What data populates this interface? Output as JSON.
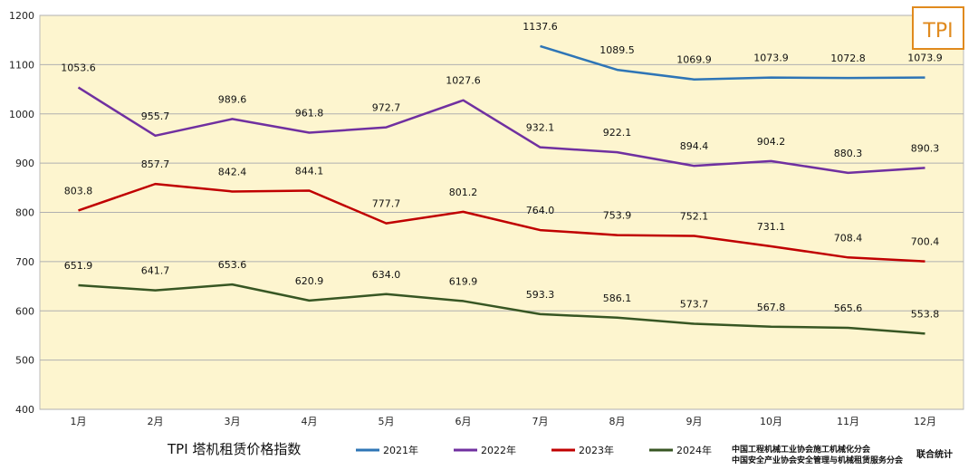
{
  "chart_data": {
    "type": "line",
    "title": "TPI  塔机租赁价格指数",
    "logo": "TPI",
    "categories": [
      "1月",
      "2月",
      "3月",
      "4月",
      "5月",
      "6月",
      "7月",
      "8月",
      "9月",
      "10月",
      "11月",
      "12月"
    ],
    "ylim": [
      400,
      1200
    ],
    "yticks": [
      400,
      500,
      600,
      700,
      800,
      900,
      1000,
      1100,
      1200
    ],
    "grid": true,
    "legend_position": "bottom",
    "series": [
      {
        "name": "2021年",
        "color": "#2e75b6",
        "values": [
          null,
          null,
          null,
          null,
          null,
          null,
          1137.6,
          1089.5,
          1069.9,
          1073.9,
          1072.8,
          1073.9
        ]
      },
      {
        "name": "2022年",
        "color": "#7030a0",
        "values": [
          1053.6,
          955.7,
          989.6,
          961.8,
          972.7,
          1027.6,
          932.1,
          922.1,
          894.4,
          904.2,
          880.3,
          890.3
        ]
      },
      {
        "name": "2023年",
        "color": "#c00000",
        "values": [
          803.8,
          857.7,
          842.4,
          844.1,
          777.7,
          801.2,
          764.0,
          753.9,
          752.1,
          731.1,
          708.4,
          700.4
        ]
      },
      {
        "name": "2024年",
        "color": "#375623",
        "values": [
          651.9,
          641.7,
          653.6,
          620.9,
          634.0,
          619.9,
          593.3,
          586.1,
          573.7,
          567.8,
          565.6,
          553.8
        ]
      }
    ],
    "credits": [
      "中国工程机械工业协会施工机械化分会",
      "中国安全产业协会安全管理与机械租赁服务分会",
      "联合统计"
    ]
  }
}
